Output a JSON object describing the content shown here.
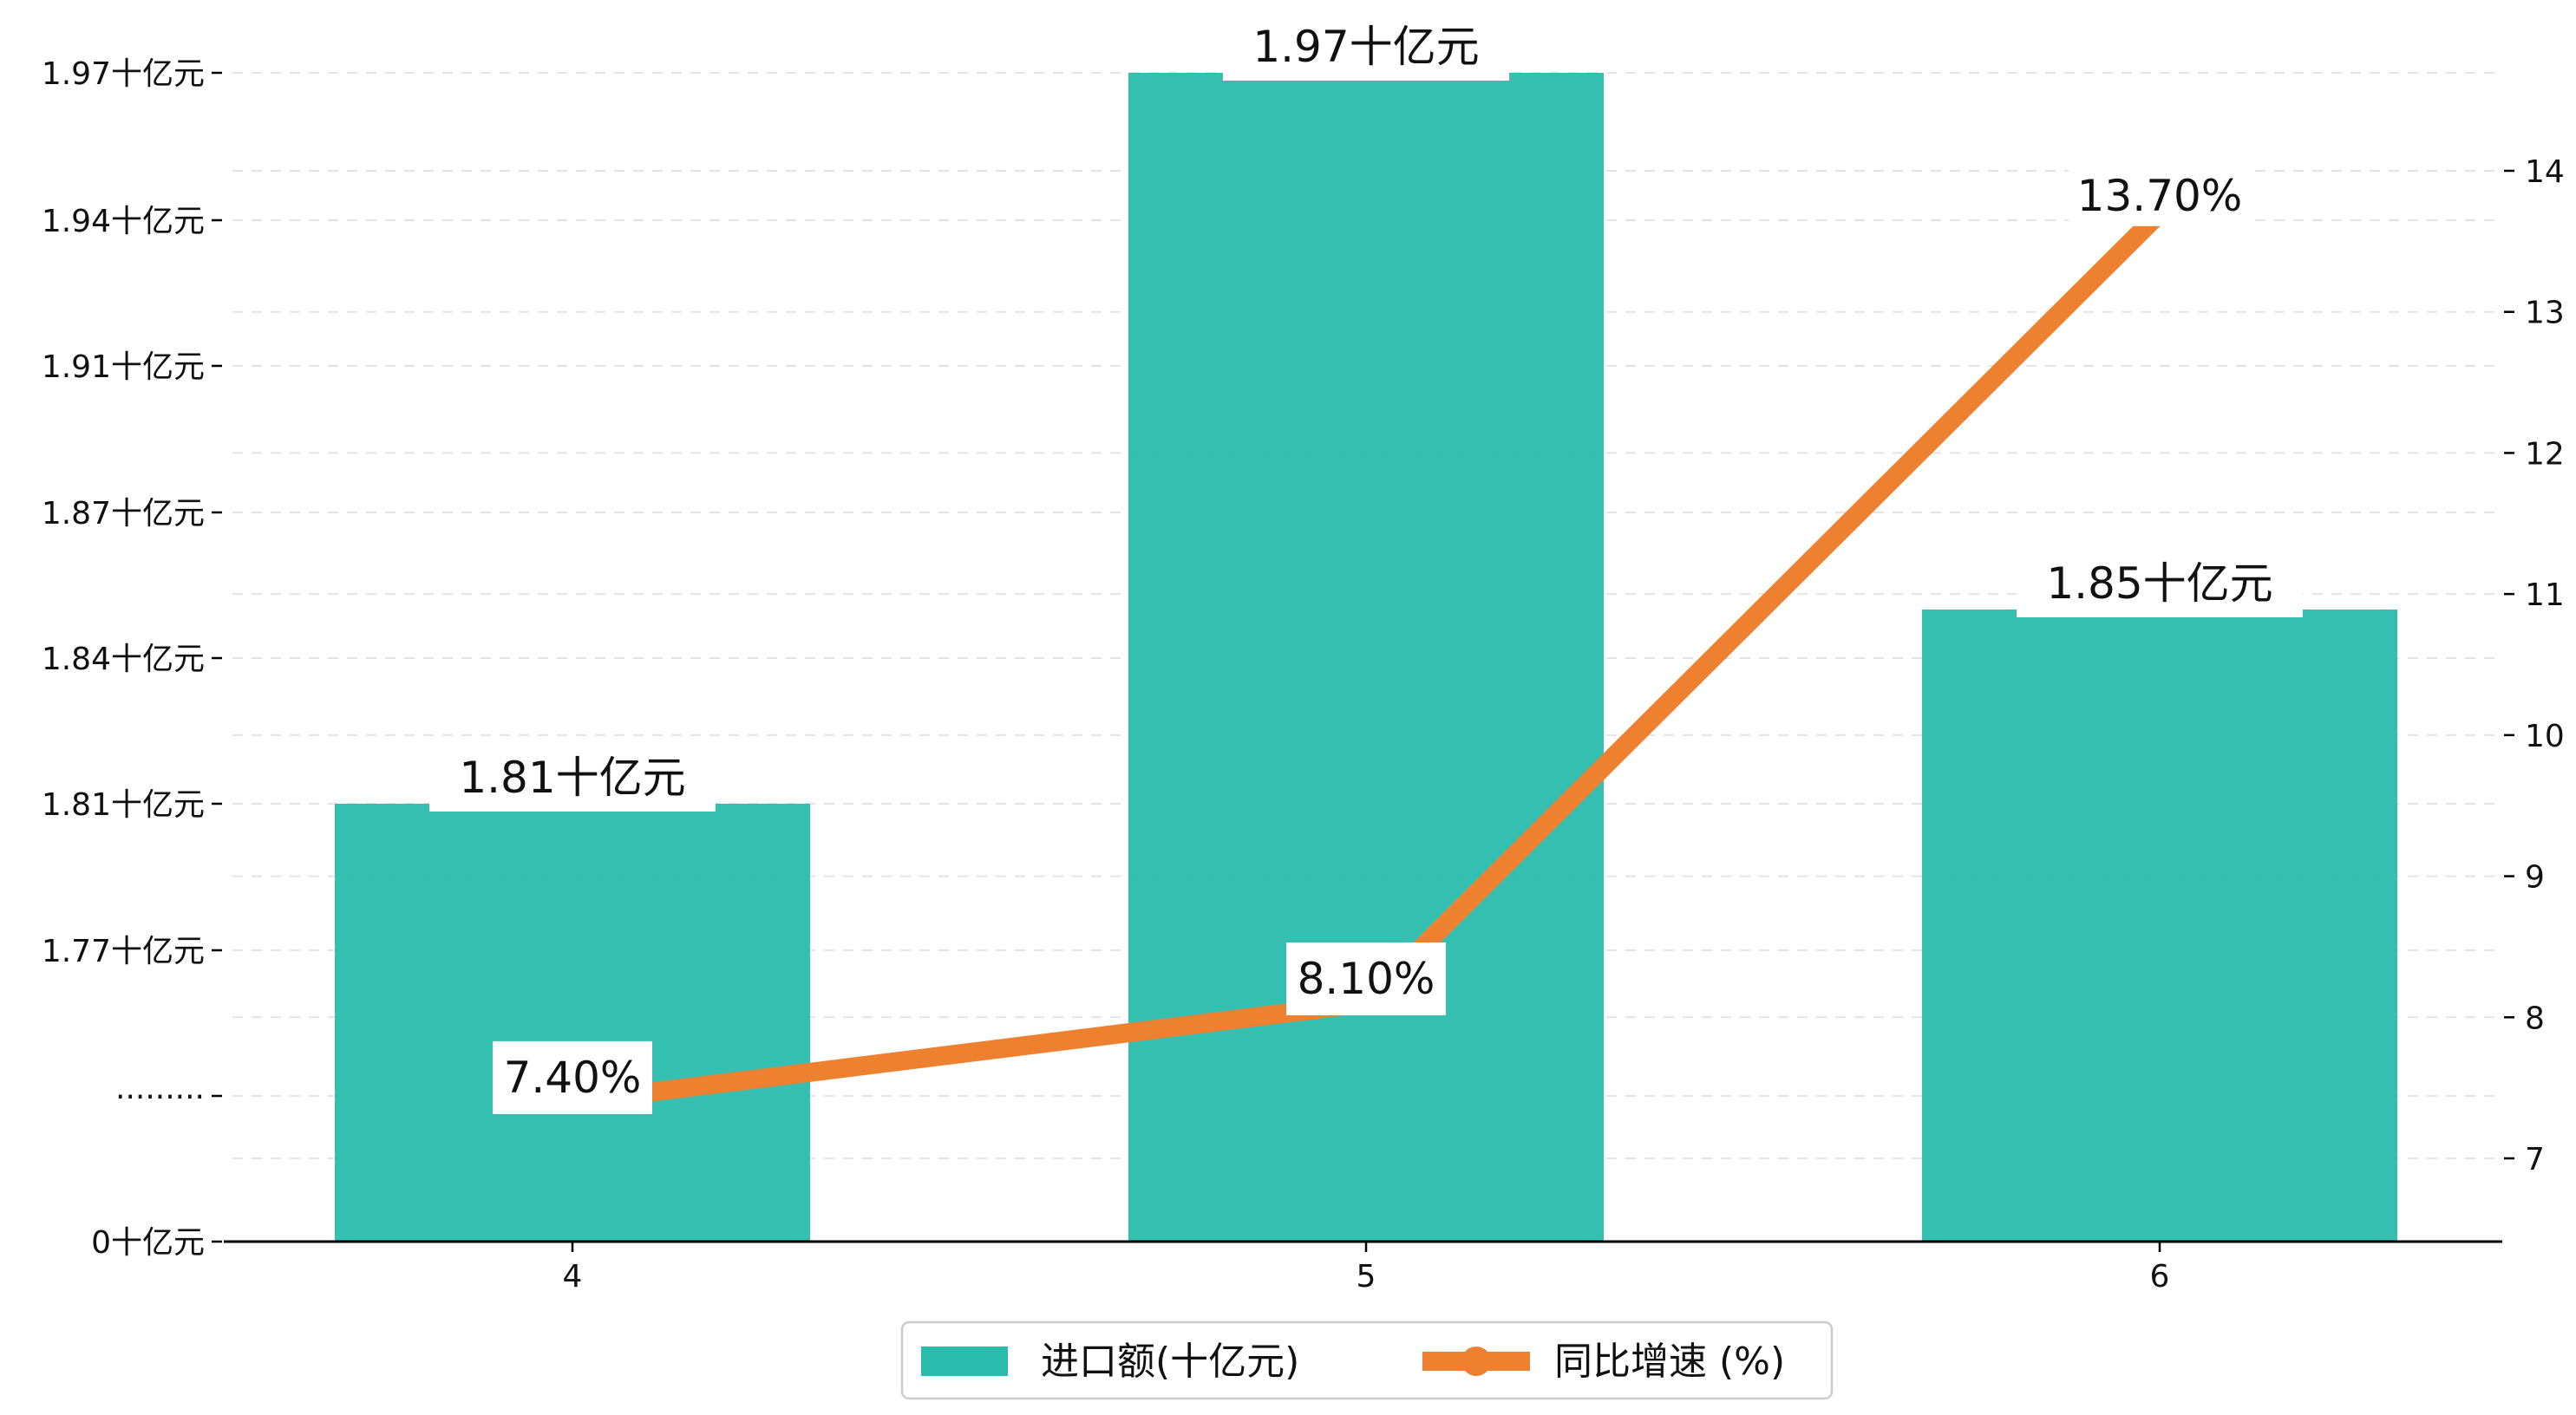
{
  "chart_data": {
    "type": "bar",
    "title": "",
    "xlabel": "",
    "ylabel": "",
    "y2label": "",
    "categories": [
      "4",
      "5",
      "6"
    ],
    "series": [
      {
        "name": "进口额(十亿元)",
        "kind": "bar",
        "axis": "left",
        "color": "#2abcad",
        "values": [
          1.81,
          1.97,
          1.85
        ],
        "labels": [
          "1.81十亿元",
          "1.97十亿元",
          "1.85十亿元"
        ]
      },
      {
        "name": "同比增速 (%)",
        "kind": "line",
        "axis": "right",
        "color": "#ee8130",
        "values": [
          7.4,
          8.1,
          13.7
        ],
        "labels": [
          "7.40%",
          "8.10%",
          "13.70%"
        ]
      }
    ],
    "y_left": {
      "tick_labels": [
        "0十亿元",
        "·········",
        "1.77十亿元",
        "1.81十亿元",
        "1.84十亿元",
        "1.87十亿元",
        "1.91十亿元",
        "1.94十亿元",
        "1.97十亿元"
      ],
      "tick_values": [
        0,
        1.7333,
        1.77,
        1.81,
        1.84,
        1.87,
        1.91,
        1.94,
        1.97
      ],
      "axis_break": true,
      "break_value": 1.7333
    },
    "y_right": {
      "ylim": [
        6.4,
        14.7
      ],
      "ticks": [
        7,
        8,
        9,
        10,
        11,
        12,
        13,
        14
      ]
    },
    "grid": "horizontal-dashed",
    "legend_position": "bottom-center"
  }
}
